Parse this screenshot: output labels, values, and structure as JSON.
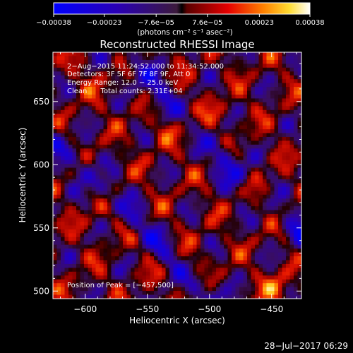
{
  "chart_data": {
    "type": "heatmap",
    "title": "Reconstructed RHESSI Image",
    "xlabel": "Heliocentric X (arcsec)",
    "ylabel": "Heliocentric Y (arcsec)",
    "xlim": [
      -626,
      -426
    ],
    "ylim": [
      494,
      689
    ],
    "xticks": [
      -600,
      -550,
      -500,
      -450
    ],
    "xtick_labels": [
      "−600",
      "−550",
      "−500",
      "−450"
    ],
    "yticks": [
      500,
      550,
      600,
      650
    ],
    "ytick_labels": [
      "500",
      "550",
      "600",
      "650"
    ],
    "colorbar": {
      "ticks": [
        -0.00038,
        -0.00023,
        -7.6e-05,
        7.6e-05,
        0.00023,
        0.00038
      ],
      "tick_labels": [
        "−0.00038",
        "−0.00023",
        "−7.6e−05",
        "7.6e−05",
        "0.00023",
        "0.00038"
      ],
      "unit_label": "(photons cm⁻² s⁻¹ asec⁻²)",
      "range": [
        -0.00038,
        0.00038
      ]
    },
    "annotations": [
      "2−Aug−2015 11:24:52.000 to 11:34:52.000",
      "Detectors: 3F 5F 6F 7F 8F 9F, Att 0",
      "Energy Range: 12.0 − 25.0 keV",
      "Clean      Total counts: 2.31E+04"
    ],
    "peak_label": "Position of Peak = [−457,500]",
    "peak": [
      -457,
      500
    ],
    "timestamp": "28−Jul−2017 06:29"
  }
}
